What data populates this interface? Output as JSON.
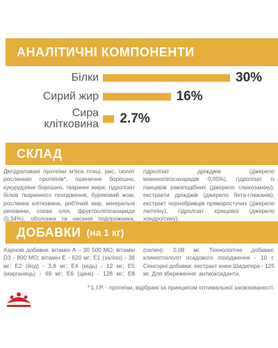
{
  "chart_data": {
    "type": "bar",
    "title": "АНАЛІТИЧНІ КОМПОНЕНТИ",
    "categories": [
      "Білки",
      "Сирий жир",
      "Сира клітковина"
    ],
    "values": [
      30,
      16,
      2.7
    ],
    "value_labels": [
      "30%",
      "16%",
      "2.7%"
    ],
    "color": "#e6ae3c"
  },
  "composition": {
    "title": "СКЛАД",
    "text": "Дегідратовані протеїни м'яса птиці, рис, ізолят рослинних протеїнів*, пшеничне борошно, кукурудзяне борошно, тваринні жири, гідролізат білків тваринного походження, буряковий жом, рослинна клітковина, риб'ячий жир, мінеральні речовини, соєва олія, фруктоолігосахариди (0,34%), оболонка та насіння подорожника, гідролізат дріжджів (джерело манноолігосахаридів 0,05%), гідролізат із панцирів ракоподібних (джерело глюкозаміну), екстракти дріжджів (джерело бета-глюканів), екстракт чорнобривців пряморостучих (джерело лютеїну), гідролізат хрящової (джерело хондроїтину)."
  },
  "additives": {
    "title": "ДОБАВКИ",
    "subtitle": "(на 1 кг)",
    "text": "Харчові добавки: вітамін А – 30 500 МО; вітамін D3 - 800 МО; вітамін Е - 620 мг; Е1 (залізо) - 38 мг; Е2 (йод) - 3,8 мг; Е4 (мідь) - 12 мг; Е5 (марганець) - 49 мг; Е6 (цинк) - 128 мг; Е8 (селен): 0,08 мг. Технологічні добавки: клиноптилоліт осадового походження - 10 г. Сенсорні добавки: екстракт юкки Шидигера - 125 мг. Для збереження: антиоксиданти."
  },
  "footnote": "* L.I.P. - протеїни, відібрані за принципом оптимальної засвоюваності."
}
